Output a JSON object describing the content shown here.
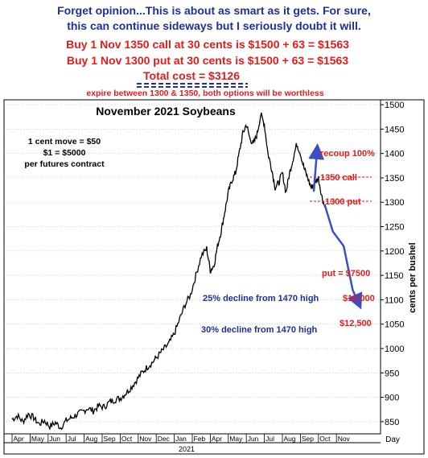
{
  "header": {
    "line1": "Forget opinion...This is about as smart as it gets. For sure,",
    "line2": "this can continue sideways but I seriously doubt it will.",
    "line3": "Buy 1 Nov 1350 call at 30 cents is $1500 + 63 = $1563",
    "line4": "Buy 1 Nov 1300 put at 30 cents is $1500 + 63 = $1563",
    "line5": "Total cost = $3126",
    "line6": "expire between 1300 & 1350, both options will be worthless"
  },
  "colors": {
    "blue": "#1f2f9c",
    "red": "#e21b1b",
    "price": "#000000",
    "arrow": "#3a4fc4"
  },
  "notes": {
    "move1": "1 cent move = $50",
    "move2": "$1 = $5000",
    "move3": "per futures contract"
  },
  "annotations": {
    "recoup": "recoup 100%",
    "call": "1350 call",
    "put": "1300 put",
    "put_value": "put = $7500",
    "v10000": "$10,000",
    "v12500": "$12,500",
    "decline25": "25% decline from 1470 high",
    "decline30": "30% decline from 1470 high"
  },
  "chart_data": {
    "type": "line",
    "title": "November 2021 Soybeans",
    "xlabel": "Day",
    "ylabel": "cents per bushel",
    "year_label": "2021",
    "ylim": [
      825,
      1510
    ],
    "yticks": [
      850,
      900,
      950,
      1000,
      1050,
      1100,
      1150,
      1200,
      1250,
      1300,
      1350,
      1400,
      1450,
      1500
    ],
    "x_tick_labels": [
      "Apr",
      "May",
      "Jun",
      "Jul",
      "Aug",
      "Sep",
      "Oct",
      "Nov",
      "Dec",
      "Jan",
      "Feb",
      "Apr",
      "May",
      "Jun",
      "Jul",
      "Aug",
      "Sep",
      "Oct",
      "Nov"
    ],
    "series": [
      {
        "values": [
          [
            0,
            855
          ],
          [
            0.3,
            862
          ],
          [
            0.6,
            850
          ],
          [
            0.9,
            866
          ],
          [
            1.2,
            858
          ],
          [
            1.5,
            845
          ],
          [
            1.8,
            852
          ],
          [
            2.1,
            840
          ],
          [
            2.4,
            848
          ],
          [
            2.7,
            838
          ],
          [
            3.0,
            852
          ],
          [
            3.3,
            858
          ],
          [
            3.6,
            865
          ],
          [
            3.9,
            870
          ],
          [
            4.2,
            878
          ],
          [
            4.5,
            872
          ],
          [
            4.8,
            882
          ],
          [
            5.1,
            880
          ],
          [
            5.4,
            890
          ],
          [
            5.7,
            895
          ],
          [
            6.0,
            898
          ],
          [
            6.3,
            908
          ],
          [
            6.6,
            920
          ],
          [
            6.9,
            935
          ],
          [
            7.2,
            950
          ],
          [
            7.5,
            962
          ],
          [
            7.8,
            972
          ],
          [
            8.1,
            985
          ],
          [
            8.4,
            998
          ],
          [
            8.7,
            1010
          ],
          [
            9.0,
            1030
          ],
          [
            9.3,
            1060
          ],
          [
            9.6,
            1090
          ],
          [
            9.9,
            1110
          ],
          [
            10.2,
            1150
          ],
          [
            10.5,
            1190
          ],
          [
            10.8,
            1205
          ],
          [
            11.0,
            1160
          ],
          [
            11.2,
            1170
          ],
          [
            11.4,
            1210
          ],
          [
            11.6,
            1240
          ],
          [
            11.8,
            1280
          ],
          [
            12.0,
            1320
          ],
          [
            12.2,
            1345
          ],
          [
            12.4,
            1360
          ],
          [
            12.6,
            1400
          ],
          [
            12.8,
            1440
          ],
          [
            13.0,
            1460
          ],
          [
            13.2,
            1430
          ],
          [
            13.4,
            1420
          ],
          [
            13.6,
            1440
          ],
          [
            13.8,
            1480
          ],
          [
            14.0,
            1460
          ],
          [
            14.2,
            1400
          ],
          [
            14.4,
            1370
          ],
          [
            14.6,
            1330
          ],
          [
            14.8,
            1340
          ],
          [
            15.0,
            1360
          ],
          [
            15.2,
            1320
          ],
          [
            15.4,
            1360
          ],
          [
            15.6,
            1390
          ],
          [
            15.8,
            1420
          ],
          [
            16.0,
            1400
          ],
          [
            16.2,
            1370
          ],
          [
            16.4,
            1350
          ],
          [
            16.6,
            1330
          ],
          [
            16.8,
            1340
          ],
          [
            17.0,
            1350
          ],
          [
            17.2,
            1310
          ],
          [
            17.35,
            1290
          ]
        ]
      }
    ],
    "projection": [
      [
        17.35,
        1295
      ],
      [
        17.8,
        1240
      ],
      [
        18.4,
        1210
      ],
      [
        18.9,
        1120
      ],
      [
        19.2,
        1095
      ]
    ]
  }
}
